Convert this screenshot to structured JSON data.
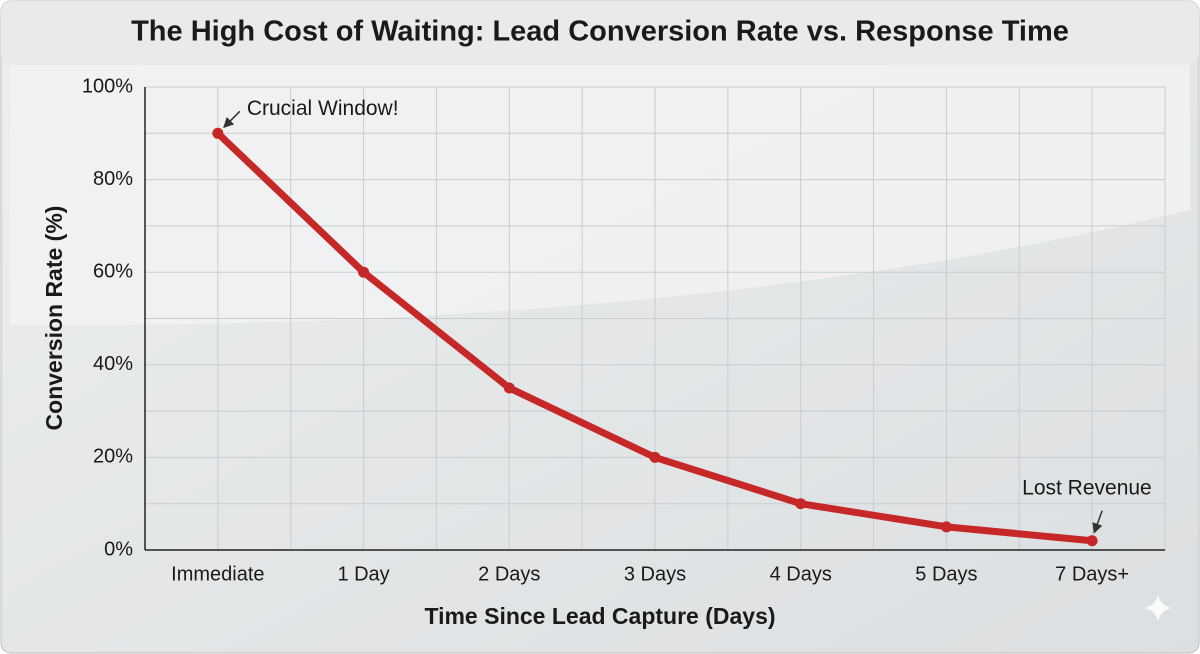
{
  "chart_data": {
    "type": "line",
    "title": "The High Cost of Waiting: Lead Conversion Rate vs. Response Time",
    "x_label": "Time Since Lead Capture (Days)",
    "y_label": "Conversion Rate (%)",
    "categories": [
      "Immediate",
      "1 Day",
      "2 Days",
      "3 Days",
      "4 Days",
      "5 Days",
      "7 Days+"
    ],
    "values": [
      90,
      60,
      35,
      20,
      10,
      5,
      2
    ],
    "color": "#c62828",
    "ylim": [
      0,
      100
    ],
    "yticks": [
      {
        "value": 0,
        "label": "0%"
      },
      {
        "value": 20,
        "label": "20%"
      },
      {
        "value": 40,
        "label": "40%"
      },
      {
        "value": 60,
        "label": "60%"
      },
      {
        "value": 80,
        "label": "80%"
      },
      {
        "value": 100,
        "label": "100%"
      }
    ],
    "minor_yticks": [
      10,
      30,
      50,
      70,
      90
    ],
    "grid": true,
    "annotations": [
      "Crucial Window!",
      "Lost Revenue"
    ]
  }
}
